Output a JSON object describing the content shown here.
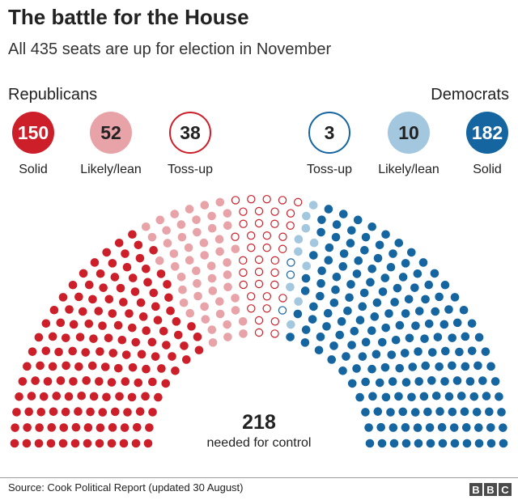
{
  "title": "The battle for the House",
  "subtitle": "All 435 seats are up for election in November",
  "parties": {
    "republicans": "Republicans",
    "democrats": "Democrats"
  },
  "colors": {
    "rep_solid": "#cc1f2a",
    "rep_lean": "#e8a3a8",
    "rep_tossup": "#cc1f2a",
    "dem_tossup": "#1565a0",
    "dem_lean": "#a3c7de",
    "dem_solid": "#1565a0"
  },
  "chart_data": {
    "type": "parliament",
    "total_seats": 435,
    "categories": [
      {
        "party": "Republicans",
        "label": "Solid",
        "seats": 150,
        "style": "filled",
        "color": "#cc1f2a",
        "text_color": "#ffffff"
      },
      {
        "party": "Republicans",
        "label": "Likely/lean",
        "seats": 52,
        "style": "filled",
        "color": "#e8a3a8",
        "text_color": "#222222"
      },
      {
        "party": "Republicans",
        "label": "Toss-up",
        "seats": 38,
        "style": "outline",
        "color": "#cc1f2a",
        "text_color": "#222222"
      },
      {
        "party": "Democrats",
        "label": "Toss-up",
        "seats": 3,
        "style": "outline",
        "color": "#1565a0",
        "text_color": "#222222"
      },
      {
        "party": "Democrats",
        "label": "Likely/lean",
        "seats": 10,
        "style": "filled",
        "color": "#a3c7de",
        "text_color": "#222222"
      },
      {
        "party": "Democrats",
        "label": "Solid",
        "seats": 182,
        "style": "filled",
        "color": "#1565a0",
        "text_color": "#ffffff"
      }
    ],
    "control_threshold": 218,
    "control_label": "needed for control"
  },
  "source": "Source: Cook Political Report (updated 30 August)",
  "logo": [
    "B",
    "B",
    "C"
  ]
}
